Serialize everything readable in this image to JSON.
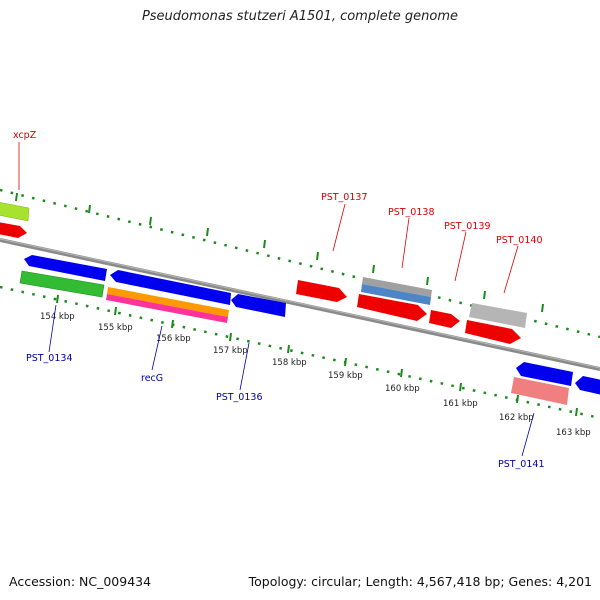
{
  "title": "Pseudomonas stutzeri A1501, complete genome",
  "footer": {
    "accession": "Accession: NC_009434",
    "summary": "Topology: circular; Length: 4,567,418 bp; Genes: 4,201"
  },
  "colors": {
    "backbone": "#8a8a8a",
    "dots": "#1a8a1a",
    "label_forward": "#dd0000",
    "label_reverse": "#0000aa"
  },
  "ticks": [
    "154 kbp",
    "155 kbp",
    "156 kbp",
    "157 kbp",
    "158 kbp",
    "159 kbp",
    "160 kbp",
    "161 kbp",
    "162 kbp",
    "163 kbp"
  ],
  "gene_labels": [
    "xcpZ",
    "PST_0137",
    "PST_0138",
    "PST_0139",
    "PST_0140",
    "PST_0134",
    "recG",
    "PST_0136",
    "PST_0141"
  ]
}
